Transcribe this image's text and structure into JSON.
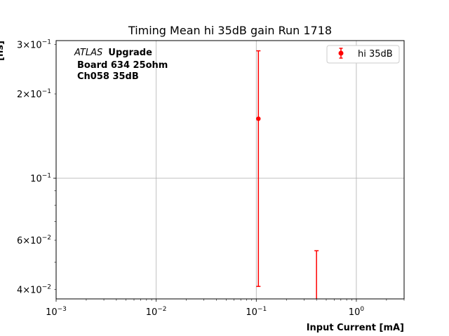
{
  "chart_data": {
    "type": "scatter",
    "title": "Timing Mean hi 35dB gain Run 1718",
    "xlabel": "Input Current [mA]",
    "ylabel": "[ns]",
    "x_scale": "log",
    "y_scale": "log",
    "xlim": [
      0.001,
      3.0
    ],
    "ylim": [
      0.037,
      0.31
    ],
    "grid": "major",
    "x_ticks": [
      {
        "value": 0.001,
        "base": "10",
        "exp": "−3"
      },
      {
        "value": 0.01,
        "base": "10",
        "exp": "−2"
      },
      {
        "value": 0.1,
        "base": "10",
        "exp": "−1"
      },
      {
        "value": 1,
        "base": "10",
        "exp": "0"
      }
    ],
    "y_ticks": [
      {
        "value": 0.04,
        "mant": "4×10",
        "exp": "−2"
      },
      {
        "value": 0.06,
        "mant": "6×10",
        "exp": "−2"
      },
      {
        "value": 0.1,
        "mant": "10",
        "exp": "−1"
      },
      {
        "value": 0.2,
        "mant": "2×10",
        "exp": "−1"
      },
      {
        "value": 0.3,
        "mant": "3×10",
        "exp": "−1"
      }
    ],
    "annotation": {
      "atlas": "ATLAS",
      "upgrade": "Upgrade",
      "line2": "Board 634 25ohm",
      "line3": "Ch058 35dB"
    },
    "legend": {
      "position": "top-right"
    },
    "series": [
      {
        "name": "hi 35dB",
        "color": "#ff0000",
        "points": [
          {
            "x": 0.105,
            "y": 0.163,
            "y_low": 0.041,
            "y_high": 0.285
          },
          {
            "x": 0.4,
            "y": null,
            "y_low": 0.03,
            "y_high": 0.055
          }
        ]
      }
    ]
  }
}
